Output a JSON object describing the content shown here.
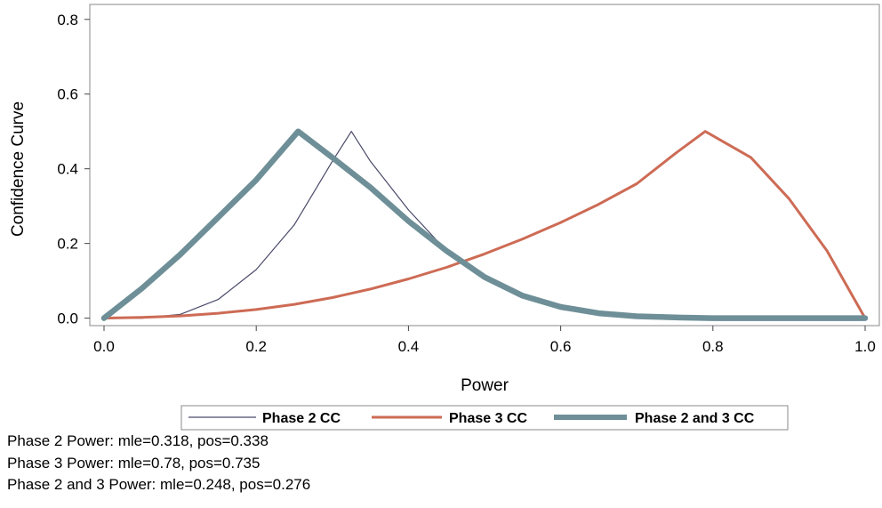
{
  "chart_data": {
    "type": "line",
    "xlabel": "Power",
    "ylabel": "Confidence Curve",
    "xlim": [
      0.0,
      1.0
    ],
    "ylim": [
      -0.02,
      0.84
    ],
    "xticks": [
      "0.0",
      "0.2",
      "0.4",
      "0.6",
      "0.8",
      "1.0"
    ],
    "yticks": [
      "0.0",
      "0.2",
      "0.4",
      "0.6",
      "0.8"
    ],
    "grid": false,
    "legend_position": "bottom",
    "series": [
      {
        "name": "Phase 2 CC",
        "color": "#4a4a6a",
        "x": [
          0.0,
          0.05,
          0.1,
          0.15,
          0.2,
          0.25,
          0.3,
          0.325,
          0.35,
          0.4,
          0.45,
          0.5,
          0.55,
          0.6,
          0.65,
          0.7,
          0.75,
          0.8,
          0.9,
          1.0
        ],
        "y": [
          0.0,
          0.0,
          0.01,
          0.05,
          0.13,
          0.25,
          0.42,
          0.5,
          0.42,
          0.29,
          0.18,
          0.11,
          0.06,
          0.03,
          0.013,
          0.005,
          0.002,
          0.0,
          0.0,
          0.0
        ]
      },
      {
        "name": "Phase 3 CC",
        "color": "#cd6b55",
        "x": [
          0.0,
          0.05,
          0.1,
          0.15,
          0.2,
          0.25,
          0.3,
          0.35,
          0.4,
          0.45,
          0.5,
          0.55,
          0.6,
          0.65,
          0.7,
          0.75,
          0.79,
          0.85,
          0.9,
          0.95,
          1.0
        ],
        "y": [
          0.0,
          0.002,
          0.006,
          0.013,
          0.023,
          0.037,
          0.055,
          0.078,
          0.105,
          0.136,
          0.172,
          0.212,
          0.256,
          0.305,
          0.36,
          0.44,
          0.5,
          0.43,
          0.32,
          0.18,
          0.0
        ]
      },
      {
        "name": "Phase 2 and 3 CC",
        "color": "#6e8f97",
        "x": [
          0.0,
          0.05,
          0.1,
          0.15,
          0.2,
          0.255,
          0.3,
          0.35,
          0.4,
          0.45,
          0.5,
          0.55,
          0.6,
          0.65,
          0.7,
          0.75,
          0.8,
          0.9,
          1.0
        ],
        "y": [
          0.0,
          0.08,
          0.17,
          0.27,
          0.37,
          0.5,
          0.43,
          0.35,
          0.26,
          0.18,
          0.11,
          0.06,
          0.03,
          0.013,
          0.005,
          0.002,
          0.0,
          0.0,
          0.0
        ]
      }
    ]
  },
  "footnotes": {
    "line1": "Phase 2 Power: mle=0.318, pos=0.338",
    "line2": "Phase 3 Power: mle=0.78, pos=0.735",
    "line3": "Phase 2 and 3 Power: mle=0.248, pos=0.276"
  }
}
